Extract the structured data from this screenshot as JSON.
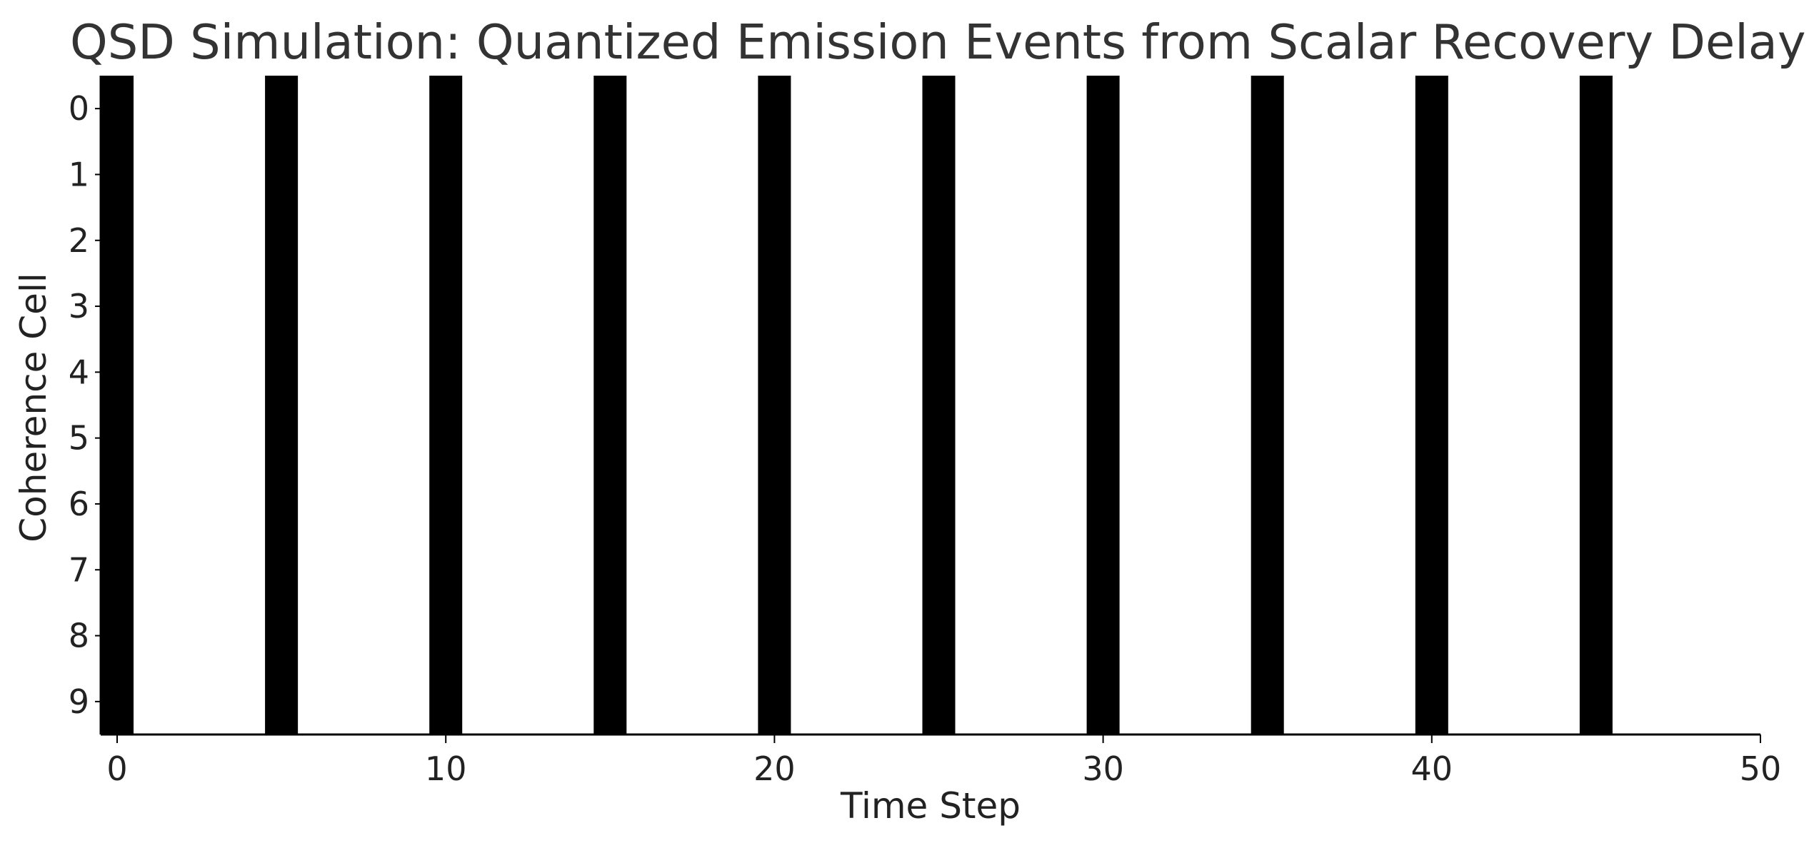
{
  "chart_data": {
    "type": "heatmap",
    "title": "QSD Simulation: Quantized Emission Events from Scalar Recovery Delay",
    "xlabel": "Time Step",
    "ylabel": "Coherence Cell",
    "x_ticks": [
      "0",
      "10",
      "20",
      "30",
      "40",
      "50"
    ],
    "y_ticks": [
      "0",
      "1",
      "2",
      "3",
      "4",
      "5",
      "6",
      "7",
      "8",
      "9"
    ],
    "xlim": [
      -0.5,
      50
    ],
    "ylim": [
      9.5,
      -0.5
    ],
    "time_steps": 50,
    "cells": 10,
    "emission_time_steps": [
      0,
      5,
      10,
      15,
      20,
      25,
      30,
      35,
      40,
      45
    ],
    "emission_value": 1,
    "colors": {
      "emission": "#000000",
      "background": "#ffffff",
      "axis": "#000000",
      "title": "#333333"
    },
    "grid": false
  }
}
